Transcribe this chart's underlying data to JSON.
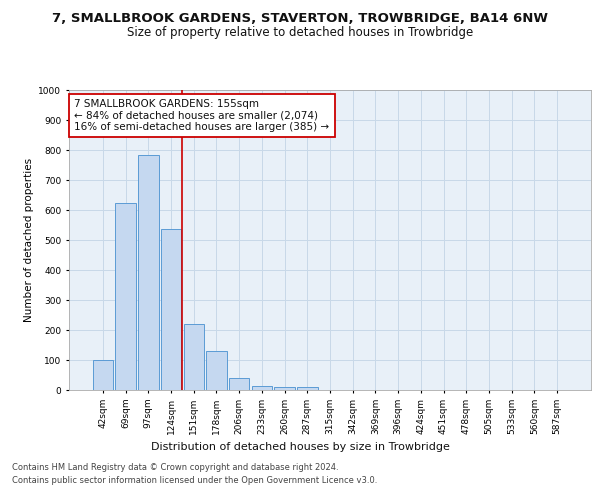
{
  "title": "7, SMALLBROOK GARDENS, STAVERTON, TROWBRIDGE, BA14 6NW",
  "subtitle": "Size of property relative to detached houses in Trowbridge",
  "xlabel": "Distribution of detached houses by size in Trowbridge",
  "ylabel": "Number of detached properties",
  "categories": [
    "42sqm",
    "69sqm",
    "97sqm",
    "124sqm",
    "151sqm",
    "178sqm",
    "206sqm",
    "233sqm",
    "260sqm",
    "287sqm",
    "315sqm",
    "342sqm",
    "369sqm",
    "396sqm",
    "424sqm",
    "451sqm",
    "478sqm",
    "505sqm",
    "533sqm",
    "560sqm",
    "587sqm"
  ],
  "values": [
    100,
    622,
    785,
    537,
    220,
    130,
    40,
    15,
    10,
    10,
    0,
    0,
    0,
    0,
    0,
    0,
    0,
    0,
    0,
    0,
    0
  ],
  "bar_color": "#c5d8f0",
  "bar_edge_color": "#5b9bd5",
  "highlight_line_color": "#cc0000",
  "highlight_line_index": 4,
  "annotation_text": "7 SMALLBROOK GARDENS: 155sqm\n← 84% of detached houses are smaller (2,074)\n16% of semi-detached houses are larger (385) →",
  "annotation_box_color": "#cc0000",
  "ylim": [
    0,
    1000
  ],
  "yticks": [
    0,
    100,
    200,
    300,
    400,
    500,
    600,
    700,
    800,
    900,
    1000
  ],
  "grid_color": "#c8d8e8",
  "background_color": "#e8f0f8",
  "footer_line1": "Contains HM Land Registry data © Crown copyright and database right 2024.",
  "footer_line2": "Contains public sector information licensed under the Open Government Licence v3.0.",
  "title_fontsize": 9.5,
  "subtitle_fontsize": 8.5,
  "xlabel_fontsize": 8,
  "ylabel_fontsize": 7.5,
  "tick_fontsize": 6.5,
  "annotation_fontsize": 7.5,
  "footer_fontsize": 6
}
